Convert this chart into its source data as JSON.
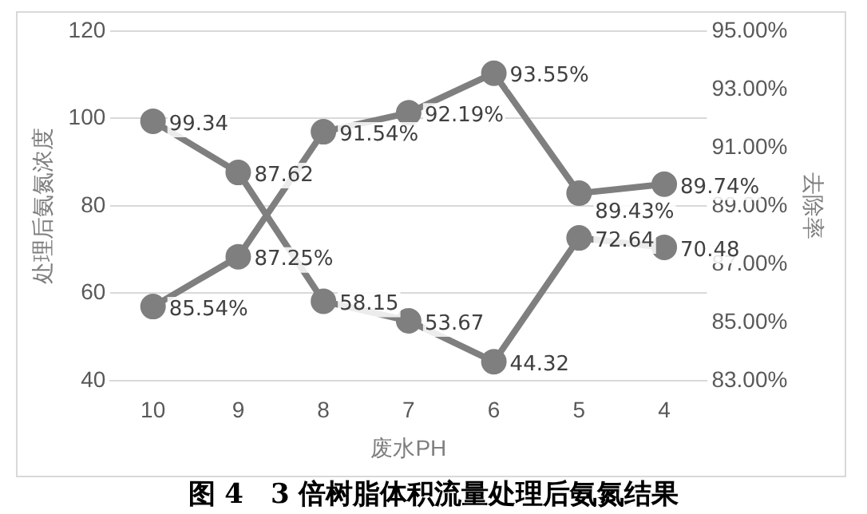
{
  "chart_data": {
    "type": "line",
    "title": "图 4　3 倍树脂体积流量处理后氨氮结果",
    "xlabel": "废水PH",
    "ylabel": "处理后氨氮浓度",
    "y2label": "去除率",
    "categories": [
      "10",
      "9",
      "8",
      "7",
      "6",
      "5",
      "4"
    ],
    "series": [
      {
        "color": "#7f7f7f",
        "values": [
          99.34,
          87.62,
          58.15,
          53.67,
          44.32,
          72.64,
          70.48
        ],
        "value_labels": [
          "99.34",
          "87.62",
          "58.15",
          "53.67",
          "44.32",
          "72.64",
          "70.48"
        ]
      },
      {
        "color": "#7f7f7f",
        "axis": "y2",
        "values": [
          85.54,
          87.25,
          91.54,
          92.19,
          93.55,
          89.43,
          89.74
        ],
        "value_labels": [
          "85.54%",
          "87.25%",
          "91.54%",
          "92.19%",
          "93.55%",
          "89.43%",
          "89.74%"
        ]
      }
    ],
    "ylim": [
      40,
      120
    ],
    "yticks": [
      40,
      60,
      80,
      100,
      120
    ],
    "y2lim": [
      83,
      95
    ],
    "y2ticks": [
      {
        "value": 83,
        "label": "83.00%"
      },
      {
        "value": 85,
        "label": "85.00%"
      },
      {
        "value": 87,
        "label": "87.00%"
      },
      {
        "value": 89,
        "label": "89.00%"
      },
      {
        "value": 91,
        "label": "91.00%"
      },
      {
        "value": 93,
        "label": "93.00%"
      },
      {
        "value": 95,
        "label": "95.00%"
      }
    ],
    "grid": "y",
    "marker": "circle",
    "line_style": "solid",
    "legend": false
  }
}
